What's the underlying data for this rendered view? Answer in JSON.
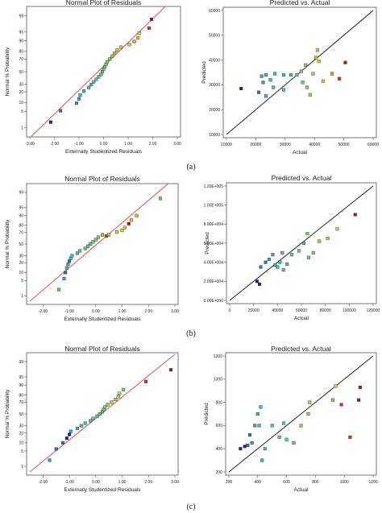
{
  "captions": [
    "(a)",
    "(b)",
    "(c)"
  ],
  "chart_data": [
    {
      "type": "scatter",
      "title": "Normal Plot of Residuals",
      "xlabel": "Externally Studentized Residuals",
      "ylabel": "Normal % Probability",
      "xlim": [
        -3,
        3
      ],
      "ylim": [
        1,
        99
      ],
      "yscale": "normal-probability",
      "x_ticks": [
        "-3.00",
        "-2.00",
        "-1.00",
        "0.00",
        "1.00",
        "2.00",
        "3.00"
      ],
      "y_ticks": [
        "1",
        "5",
        "10",
        "20",
        "30",
        "50",
        "70",
        "80",
        "90",
        "95",
        "99"
      ],
      "fit_line": {
        "x": [
          -3.0,
          2.9
        ],
        "y": [
          0.3,
          99.9
        ],
        "color": "#e35a5a"
      },
      "points": [
        {
          "x": -2.15,
          "y": 1.8,
          "color": "#20209e"
        },
        {
          "x": -1.75,
          "y": 5.2,
          "color": "#3070c8"
        },
        {
          "x": -1.1,
          "y": 9.5,
          "color": "#3ba0d0"
        },
        {
          "x": -1.0,
          "y": 13.0,
          "color": "#3ba0d0"
        },
        {
          "x": -0.95,
          "y": 16.5,
          "color": "#40b4c8"
        },
        {
          "x": -0.8,
          "y": 21.0,
          "color": "#40b4c8"
        },
        {
          "x": -0.6,
          "y": 25.5,
          "color": "#42bdb8"
        },
        {
          "x": -0.5,
          "y": 29.5,
          "color": "#42bdb8"
        },
        {
          "x": -0.4,
          "y": 33.5,
          "color": "#4cc4a8"
        },
        {
          "x": -0.3,
          "y": 37.5,
          "color": "#4cc4a8"
        },
        {
          "x": -0.2,
          "y": 41.5,
          "color": "#52c89a"
        },
        {
          "x": -0.1,
          "y": 45.5,
          "color": "#52c89a"
        },
        {
          "x": -0.05,
          "y": 50.0,
          "color": "#5ccc80"
        },
        {
          "x": 0.0,
          "y": 54.0,
          "color": "#5ccc80"
        },
        {
          "x": 0.05,
          "y": 58.0,
          "color": "#70d070"
        },
        {
          "x": 0.1,
          "y": 62.0,
          "color": "#70d070"
        },
        {
          "x": 0.15,
          "y": 66.0,
          "color": "#8ad060"
        },
        {
          "x": 0.25,
          "y": 70.0,
          "color": "#8ad060"
        },
        {
          "x": 0.35,
          "y": 74.0,
          "color": "#a6d24e"
        },
        {
          "x": 0.45,
          "y": 78.0,
          "color": "#a6d24e"
        },
        {
          "x": 0.55,
          "y": 81.5,
          "color": "#c8d43c"
        },
        {
          "x": 0.7,
          "y": 84.5,
          "color": "#c8d43c"
        },
        {
          "x": 1.05,
          "y": 87.0,
          "color": "#e8c830"
        },
        {
          "x": 1.25,
          "y": 89.5,
          "color": "#f0a030"
        },
        {
          "x": 1.4,
          "y": 92.0,
          "color": "#e8c830"
        },
        {
          "x": 1.45,
          "y": 94.5,
          "color": "#d4d040"
        },
        {
          "x": 1.85,
          "y": 96.5,
          "color": "#e03020"
        },
        {
          "x": 1.95,
          "y": 98.5,
          "color": "#b01818"
        }
      ]
    },
    {
      "type": "scatter",
      "title": "Predicted vs. Actual",
      "xlabel": "Actual",
      "ylabel": "Predicted",
      "xlim": [
        10000,
        60000
      ],
      "ylim": [
        10000,
        60000
      ],
      "x_ticks": [
        "10000",
        "20000",
        "30000",
        "40000",
        "50000",
        "60000"
      ],
      "y_ticks": [
        "10000",
        "20000",
        "30000",
        "40000",
        "50000",
        "60000"
      ],
      "ref_line": {
        "x": [
          10000,
          60000
        ],
        "y": [
          10000,
          60000
        ],
        "color": "#111111"
      },
      "points": [
        {
          "x": 15000,
          "y": 28500,
          "color": "#20209e"
        },
        {
          "x": 21000,
          "y": 27000,
          "color": "#3070c8"
        },
        {
          "x": 22000,
          "y": 33500,
          "color": "#3ba0d0"
        },
        {
          "x": 22500,
          "y": 31000,
          "color": "#3ba0d0"
        },
        {
          "x": 23500,
          "y": 34000,
          "color": "#40b4c8"
        },
        {
          "x": 23500,
          "y": 25500,
          "color": "#40b4c8"
        },
        {
          "x": 25000,
          "y": 32000,
          "color": "#42bdb8"
        },
        {
          "x": 26000,
          "y": 29000,
          "color": "#42bdb8"
        },
        {
          "x": 26500,
          "y": 34500,
          "color": "#4cc4a8"
        },
        {
          "x": 29500,
          "y": 34000,
          "color": "#4cc4a8"
        },
        {
          "x": 29500,
          "y": 28000,
          "color": "#52c89a"
        },
        {
          "x": 32000,
          "y": 34000,
          "color": "#52c89a"
        },
        {
          "x": 34000,
          "y": 34000,
          "color": "#5ccc80"
        },
        {
          "x": 35500,
          "y": 35500,
          "color": "#70d070"
        },
        {
          "x": 36000,
          "y": 31000,
          "color": "#70d070"
        },
        {
          "x": 37000,
          "y": 38000,
          "color": "#8ad060"
        },
        {
          "x": 37500,
          "y": 29000,
          "color": "#8ad060"
        },
        {
          "x": 38500,
          "y": 26000,
          "color": "#a6d24e"
        },
        {
          "x": 39500,
          "y": 34500,
          "color": "#a6d24e"
        },
        {
          "x": 40500,
          "y": 41000,
          "color": "#c8d43c"
        },
        {
          "x": 41000,
          "y": 44000,
          "color": "#c8d43c"
        },
        {
          "x": 41500,
          "y": 39500,
          "color": "#e8c830"
        },
        {
          "x": 43000,
          "y": 31500,
          "color": "#e8c830"
        },
        {
          "x": 46000,
          "y": 34500,
          "color": "#f0a030"
        },
        {
          "x": 48500,
          "y": 32500,
          "color": "#e03020"
        },
        {
          "x": 50500,
          "y": 39000,
          "color": "#b01818"
        }
      ]
    },
    {
      "type": "scatter",
      "title": "Normal Plot of Residuals",
      "xlabel": "Externally Studentized Residuals",
      "ylabel": "Normal % Probability",
      "xlim": [
        -2.5,
        3.0
      ],
      "ylim": [
        1,
        99
      ],
      "yscale": "normal-probability",
      "x_ticks": [
        "-2.00",
        "-1.00",
        "0.00",
        "1.00",
        "2.00",
        "3.00"
      ],
      "y_ticks": [
        "1",
        "5",
        "10",
        "20",
        "30",
        "50",
        "70",
        "80",
        "90",
        "95",
        "99"
      ],
      "fit_line": {
        "x": [
          -2.5,
          2.9
        ],
        "y": [
          0.5,
          99.8
        ],
        "color": "#e35a5a"
      },
      "points": [
        {
          "x": -1.4,
          "y": 2.0,
          "color": "#5ccc80"
        },
        {
          "x": -1.2,
          "y": 6.0,
          "color": "#3ba0d0"
        },
        {
          "x": -1.15,
          "y": 10.0,
          "color": "#3070c8"
        },
        {
          "x": -1.1,
          "y": 14.0,
          "color": "#40b4c8"
        },
        {
          "x": -1.05,
          "y": 18.0,
          "color": "#3ba0d0"
        },
        {
          "x": -1.0,
          "y": 22.0,
          "color": "#3070c8"
        },
        {
          "x": -0.95,
          "y": 26.0,
          "color": "#42bdb8"
        },
        {
          "x": -0.9,
          "y": 30.0,
          "color": "#42bdb8"
        },
        {
          "x": -0.7,
          "y": 34.0,
          "color": "#4cc4a8"
        },
        {
          "x": -0.6,
          "y": 38.0,
          "color": "#52c89a"
        },
        {
          "x": -0.4,
          "y": 42.0,
          "color": "#52c89a"
        },
        {
          "x": -0.3,
          "y": 46.0,
          "color": "#5ccc80"
        },
        {
          "x": -0.2,
          "y": 50.0,
          "color": "#5ccc80"
        },
        {
          "x": -0.1,
          "y": 54.0,
          "color": "#70d070"
        },
        {
          "x": 0.0,
          "y": 58.0,
          "color": "#70d070"
        },
        {
          "x": 0.1,
          "y": 62.0,
          "color": "#8ad060"
        },
        {
          "x": 0.25,
          "y": 66.0,
          "color": "#8ad060"
        },
        {
          "x": 0.4,
          "y": 64.0,
          "color": "#e03020"
        },
        {
          "x": 0.5,
          "y": 66.0,
          "color": "#a6d24e"
        },
        {
          "x": 0.8,
          "y": 70.5,
          "color": "#e8c830"
        },
        {
          "x": 1.0,
          "y": 73.0,
          "color": "#c8d43c"
        },
        {
          "x": 1.1,
          "y": 77.0,
          "color": "#c8d43c"
        },
        {
          "x": 1.25,
          "y": 82.0,
          "color": "#b01818"
        },
        {
          "x": 1.35,
          "y": 86.0,
          "color": "#e8c830"
        },
        {
          "x": 1.55,
          "y": 90.0,
          "color": "#a6d24e"
        },
        {
          "x": 2.45,
          "y": 98.0,
          "color": "#70d070"
        }
      ]
    },
    {
      "type": "scatter",
      "title": "Predicted vs. Actual",
      "xlabel": "Actual",
      "ylabel": "Predicted",
      "xlim": [
        0,
        120000
      ],
      "ylim": [
        0,
        120000
      ],
      "x_ticks": [
        "0",
        "20000",
        "40000",
        "60000",
        "80000",
        "100000",
        "120000"
      ],
      "y_ticks": [
        "0.00E+000",
        "2.00E+004",
        "4.00E+004",
        "6.00E+004",
        "8.00E+004",
        "1.00E+005",
        "1.20E+005"
      ],
      "ref_line": {
        "x": [
          0,
          120000
        ],
        "y": [
          0,
          120000
        ],
        "color": "#111111"
      },
      "points": [
        {
          "x": 23000,
          "y": 20000,
          "color": "#20209e"
        },
        {
          "x": 25000,
          "y": 17000,
          "color": "#20209e"
        },
        {
          "x": 26000,
          "y": 35000,
          "color": "#3070c8"
        },
        {
          "x": 30000,
          "y": 40000,
          "color": "#3070c8"
        },
        {
          "x": 33000,
          "y": 43000,
          "color": "#3ba0d0"
        },
        {
          "x": 36000,
          "y": 48000,
          "color": "#3ba0d0"
        },
        {
          "x": 38000,
          "y": 37000,
          "color": "#40b4c8"
        },
        {
          "x": 40000,
          "y": 35000,
          "color": "#42bdb8"
        },
        {
          "x": 42000,
          "y": 40000,
          "color": "#42bdb8"
        },
        {
          "x": 44000,
          "y": 50000,
          "color": "#4cc4a8"
        },
        {
          "x": 45000,
          "y": 32000,
          "color": "#52c89a"
        },
        {
          "x": 48000,
          "y": 38000,
          "color": "#52c89a"
        },
        {
          "x": 52000,
          "y": 48000,
          "color": "#5ccc80"
        },
        {
          "x": 58000,
          "y": 52000,
          "color": "#70d070"
        },
        {
          "x": 62000,
          "y": 60000,
          "color": "#5ccc80"
        },
        {
          "x": 65000,
          "y": 70000,
          "color": "#8ad060"
        },
        {
          "x": 66000,
          "y": 45000,
          "color": "#70d070"
        },
        {
          "x": 70000,
          "y": 50000,
          "color": "#8ad060"
        },
        {
          "x": 75000,
          "y": 62000,
          "color": "#a6d24e"
        },
        {
          "x": 82000,
          "y": 65000,
          "color": "#c8d43c"
        },
        {
          "x": 90000,
          "y": 75000,
          "color": "#e8c830"
        },
        {
          "x": 105000,
          "y": 90000,
          "color": "#b01818"
        }
      ]
    },
    {
      "type": "scatter",
      "title": "Normal Plot of Residuals",
      "xlabel": "Externally Studentized Residuals",
      "ylabel": "Normal % Probability",
      "xlim": [
        -2.5,
        3.0
      ],
      "ylim": [
        1,
        99
      ],
      "yscale": "normal-probability",
      "x_ticks": [
        "-2.00",
        "-1.00",
        "0.00",
        "1.00",
        "2.00",
        "3.00"
      ],
      "y_ticks": [
        "1",
        "5",
        "10",
        "20",
        "30",
        "50",
        "70",
        "80",
        "90",
        "95",
        "99"
      ],
      "fit_line": {
        "x": [
          -2.5,
          3.0
        ],
        "y": [
          0.5,
          99.6
        ],
        "color": "#e35a5a"
      },
      "points": [
        {
          "x": -1.75,
          "y": 2.0,
          "color": "#3ba0d0"
        },
        {
          "x": -1.5,
          "y": 6.0,
          "color": "#3070c8"
        },
        {
          "x": -1.25,
          "y": 10.0,
          "color": "#3070c8"
        },
        {
          "x": -1.1,
          "y": 14.0,
          "color": "#20209e"
        },
        {
          "x": -1.0,
          "y": 18.0,
          "color": "#20209e"
        },
        {
          "x": -0.95,
          "y": 22.0,
          "color": "#3ba0d0"
        },
        {
          "x": -0.7,
          "y": 26.0,
          "color": "#40b4c8"
        },
        {
          "x": -0.55,
          "y": 30.0,
          "color": "#42bdb8"
        },
        {
          "x": -0.4,
          "y": 34.0,
          "color": "#42bdb8"
        },
        {
          "x": -0.2,
          "y": 38.0,
          "color": "#4cc4a8"
        },
        {
          "x": -0.1,
          "y": 42.0,
          "color": "#52c89a"
        },
        {
          "x": 0.05,
          "y": 46.0,
          "color": "#52c89a"
        },
        {
          "x": 0.15,
          "y": 50.0,
          "color": "#5ccc80"
        },
        {
          "x": 0.25,
          "y": 54.0,
          "color": "#5ccc80"
        },
        {
          "x": 0.3,
          "y": 58.0,
          "color": "#70d070"
        },
        {
          "x": 0.35,
          "y": 62.0,
          "color": "#70d070"
        },
        {
          "x": 0.45,
          "y": 66.0,
          "color": "#8ad060"
        },
        {
          "x": 0.6,
          "y": 70.0,
          "color": "#a6d24e"
        },
        {
          "x": 0.75,
          "y": 74.0,
          "color": "#a6d24e"
        },
        {
          "x": 0.85,
          "y": 78.0,
          "color": "#c8d43c"
        },
        {
          "x": 0.9,
          "y": 82.0,
          "color": "#c8d43c"
        },
        {
          "x": 1.05,
          "y": 86.0,
          "color": "#70d070"
        },
        {
          "x": 1.9,
          "y": 92.5,
          "color": "#e03020"
        },
        {
          "x": 2.85,
          "y": 97.5,
          "color": "#b01818"
        }
      ]
    },
    {
      "type": "scatter",
      "title": "Predicted vs. Actual",
      "xlabel": "Actual",
      "ylabel": "Predicted",
      "xlim": [
        200,
        1200
      ],
      "ylim": [
        200,
        1200
      ],
      "x_ticks": [
        "200",
        "400",
        "600",
        "800",
        "1000",
        "1200"
      ],
      "y_ticks": [
        "200",
        "400",
        "600",
        "800",
        "1000",
        "1200"
      ],
      "ref_line": {
        "x": [
          200,
          1200
        ],
        "y": [
          200,
          1200
        ],
        "color": "#111111"
      },
      "points": [
        {
          "x": 280,
          "y": 400,
          "color": "#20209e"
        },
        {
          "x": 310,
          "y": 420,
          "color": "#20209e"
        },
        {
          "x": 330,
          "y": 430,
          "color": "#3070c8"
        },
        {
          "x": 345,
          "y": 520,
          "color": "#3070c8"
        },
        {
          "x": 360,
          "y": 450,
          "color": "#3ba0d0"
        },
        {
          "x": 380,
          "y": 600,
          "color": "#3ba0d0"
        },
        {
          "x": 400,
          "y": 700,
          "color": "#40b4c8"
        },
        {
          "x": 410,
          "y": 600,
          "color": "#40b4c8"
        },
        {
          "x": 420,
          "y": 760,
          "color": "#42bdb8"
        },
        {
          "x": 430,
          "y": 300,
          "color": "#42bdb8"
        },
        {
          "x": 450,
          "y": 400,
          "color": "#4cc4a8"
        },
        {
          "x": 500,
          "y": 600,
          "color": "#4cc4a8"
        },
        {
          "x": 550,
          "y": 500,
          "color": "#52c89a"
        },
        {
          "x": 580,
          "y": 620,
          "color": "#5ccc80"
        },
        {
          "x": 600,
          "y": 480,
          "color": "#5ccc80"
        },
        {
          "x": 650,
          "y": 450,
          "color": "#70d070"
        },
        {
          "x": 700,
          "y": 600,
          "color": "#8ad060"
        },
        {
          "x": 750,
          "y": 700,
          "color": "#a6d24e"
        },
        {
          "x": 760,
          "y": 800,
          "color": "#a6d24e"
        },
        {
          "x": 920,
          "y": 820,
          "color": "#f0a030"
        },
        {
          "x": 940,
          "y": 940,
          "color": "#e8c830"
        },
        {
          "x": 980,
          "y": 780,
          "color": "#e03020"
        },
        {
          "x": 1040,
          "y": 500,
          "color": "#e03020"
        },
        {
          "x": 1100,
          "y": 820,
          "color": "#b01818"
        },
        {
          "x": 1110,
          "y": 930,
          "color": "#b01818"
        }
      ]
    }
  ]
}
